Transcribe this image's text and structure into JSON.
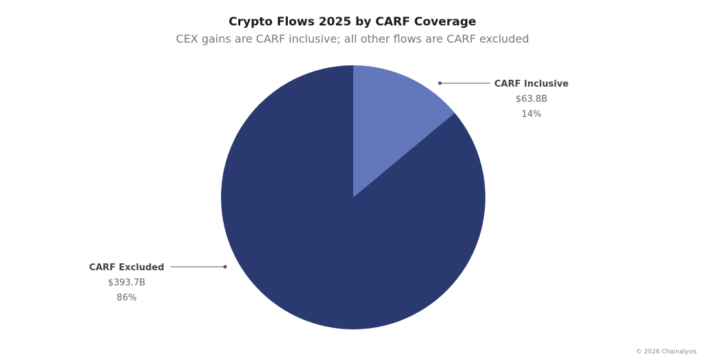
{
  "chart_data": {
    "type": "pie",
    "title": "Crypto Flows 2025 by CARF Coverage",
    "subtitle": "CEX gains are CARF inclusive; all other flows are CARF excluded",
    "slices": [
      {
        "name": "CARF Inclusive",
        "value": 63.8,
        "value_label": "$63.8B",
        "percent_label": "14%",
        "color": "#6278bb"
      },
      {
        "name": "CARF Excluded",
        "value": 393.7,
        "value_label": "$393.7B",
        "percent_label": "86%",
        "color": "#2a3970"
      }
    ]
  },
  "footer": {
    "credit": "© 2026 Chainalysis"
  }
}
